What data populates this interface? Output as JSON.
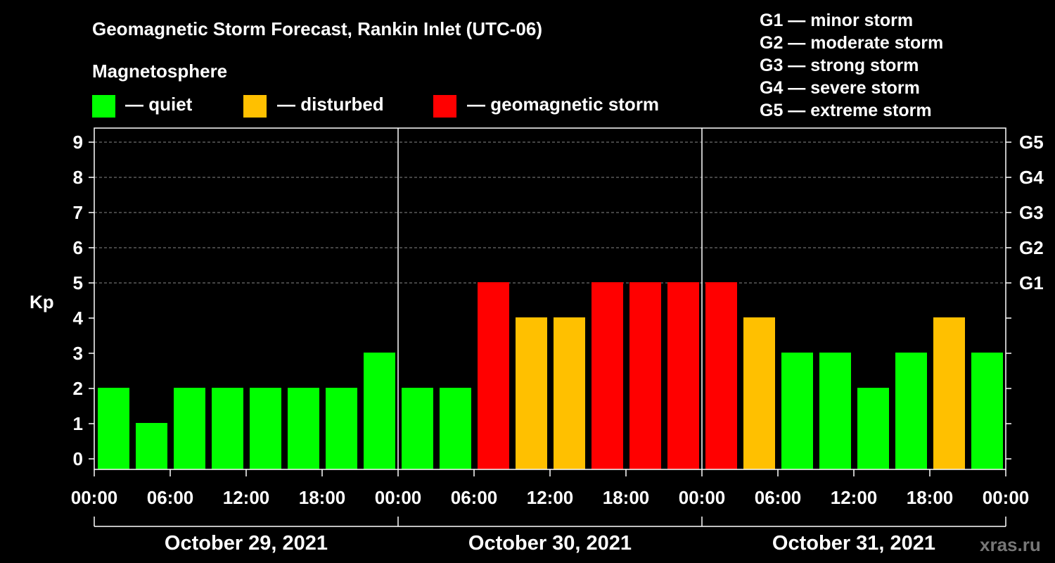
{
  "title": "Geomagnetic Storm Forecast, Rankin Inlet (UTC-06)",
  "magnetosphere_label": "Magnetosphere",
  "legend": [
    {
      "label": "— quiet",
      "color": "#00ff00"
    },
    {
      "label": "— disturbed",
      "color": "#ffc000"
    },
    {
      "label": "— geomagnetic storm",
      "color": "#ff0000"
    }
  ],
  "storm_scale": [
    "G1 — minor storm",
    "G2 — moderate storm",
    "G3 — strong storm",
    "G4 — severe storm",
    "G5 — extreme storm"
  ],
  "watermark": "xras.ru",
  "chart_data": {
    "type": "bar",
    "title": "Geomagnetic Storm Forecast, Rankin Inlet (UTC-06)",
    "ylabel": "Kp",
    "ylim": [
      0,
      9
    ],
    "yticks": [
      "0",
      "1",
      "2",
      "3",
      "4",
      "5",
      "6",
      "7",
      "8",
      "9"
    ],
    "right_ticks": [
      {
        "kp": 5,
        "label": "G1"
      },
      {
        "kp": 6,
        "label": "G2"
      },
      {
        "kp": 7,
        "label": "G3"
      },
      {
        "kp": 8,
        "label": "G4"
      },
      {
        "kp": 9,
        "label": "G5"
      }
    ],
    "xtick_labels": [
      "00:00",
      "06:00",
      "12:00",
      "18:00",
      "00:00",
      "06:00",
      "12:00",
      "18:00",
      "00:00",
      "06:00",
      "12:00",
      "18:00",
      "00:00"
    ],
    "days": [
      "October 29, 2021",
      "October 30, 2021",
      "October 31, 2021"
    ],
    "interval_hours": 3,
    "values": [
      2,
      1,
      2,
      2,
      2,
      2,
      2,
      3,
      2,
      2,
      5,
      4,
      4,
      5,
      5,
      5,
      5,
      4,
      3,
      3,
      2,
      3,
      4,
      3
    ],
    "colors": {
      "quiet": "#00ff00",
      "disturbed": "#ffc000",
      "storm": "#ff0000"
    },
    "thresholds": {
      "disturbed": 4,
      "storm": 5
    },
    "grid": true
  }
}
